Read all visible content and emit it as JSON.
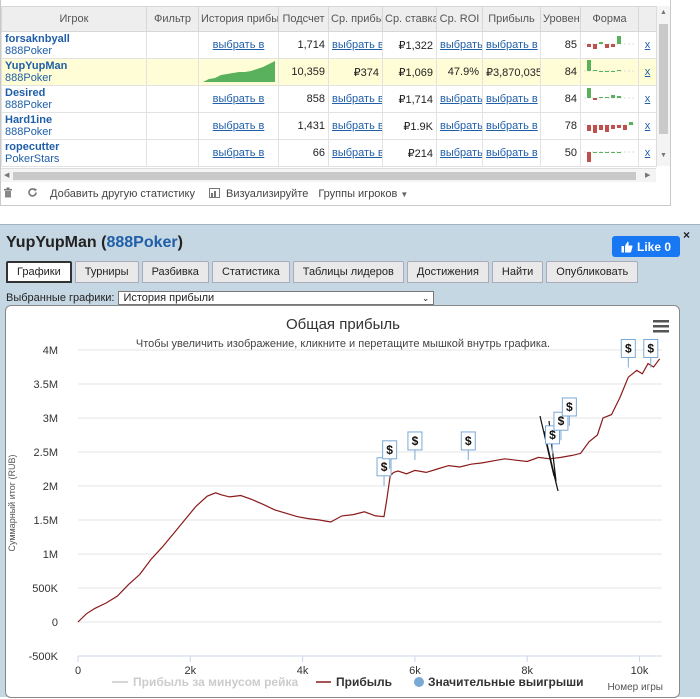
{
  "table": {
    "headers": [
      "Игрок",
      "Фильтр",
      "История прибыли",
      "Подсчет",
      "Ср. прибыль",
      "Ср. ставка",
      "Ср. ROI",
      "Прибыль",
      "Уровень",
      "Форма",
      ""
    ],
    "rows": [
      {
        "name": "forsaknbyall",
        "site": "888Poker",
        "history": "выбрать в",
        "count": "1,714",
        "avg_profit": "выбрать в",
        "avg_stake": "₽1,322",
        "roi": "выбрать",
        "profit": "выбрать в",
        "level": "85",
        "x": "x",
        "selected": false
      },
      {
        "name": "YupYupMan",
        "site": "888Poker",
        "history": "",
        "count": "10,359",
        "avg_profit": "₽374",
        "avg_stake": "₽1,069",
        "roi": "47.9%",
        "profit": "₽3,870,035",
        "level": "84",
        "x": "x",
        "selected": true
      },
      {
        "name": "Desired",
        "site": "888Poker",
        "history": "выбрать в",
        "count": "858",
        "avg_profit": "выбрать в",
        "avg_stake": "₽1,714",
        "roi": "выбрать",
        "profit": "выбрать в",
        "level": "84",
        "x": "x",
        "selected": false
      },
      {
        "name": "Hard1ine",
        "site": "888Poker",
        "history": "выбрать в",
        "count": "1,431",
        "avg_profit": "выбрать в",
        "avg_stake": "₽1.9K",
        "roi": "выбрать",
        "profit": "выбрать в",
        "level": "78",
        "x": "x",
        "selected": false
      },
      {
        "name": "ropecutter",
        "site": "PokerStars",
        "history": "выбрать в",
        "count": "66",
        "avg_profit": "выбрать в",
        "avg_stake": "₽214",
        "roi": "выбрать",
        "profit": "выбрать в",
        "level": "50",
        "x": "x",
        "selected": false
      }
    ],
    "form_colors": {
      "win": "#59b15d",
      "loss": "#c0504d"
    }
  },
  "toolbar": {
    "trash_icon": "trash-icon",
    "refresh_icon": "refresh-icon",
    "add_stats": "Добавить другую статистику",
    "visualize_icon": "chart-icon",
    "visualize": "Визуализируйте",
    "groups": "Группы игроков"
  },
  "player": {
    "name": "YupYupMan",
    "site": "888Poker",
    "like_label": "Like 0",
    "close": "×",
    "tabs": [
      "Графики",
      "Турниры",
      "Разбивка",
      "Статистика",
      "Таблицы лидеров",
      "Достижения",
      "Найти",
      "Опубликовать"
    ],
    "active_tab": 0,
    "chart_select_label": "Выбранные графики:",
    "chart_select_value": "История прибыли"
  },
  "chart_data": {
    "type": "line",
    "title": "Общая прибыль",
    "subtitle": "Чтобы увеличить изображение, кликните и перетащите мышкой внутрь графика.",
    "xlabel": "Номер игры",
    "ylabel": "Суммарный итог (RUB)",
    "xlim": [
      0,
      10400
    ],
    "ylim": [
      -500000,
      4000000
    ],
    "x_ticks": [
      "0",
      "2k",
      "4k",
      "6k",
      "8k",
      "10k"
    ],
    "x_tick_values": [
      0,
      2000,
      4000,
      6000,
      8000,
      10000
    ],
    "y_ticks": [
      "-500K",
      "0",
      "500K",
      "1M",
      "1.5M",
      "2M",
      "2.5M",
      "3M",
      "3.5M",
      "4M"
    ],
    "y_tick_values": [
      -500000,
      0,
      500000,
      1000000,
      1500000,
      2000000,
      2500000,
      3000000,
      3500000,
      4000000
    ],
    "series": [
      {
        "name": "Прибыль",
        "color": "#8b1a1a",
        "x": [
          0,
          150,
          300,
          500,
          700,
          900,
          1100,
          1300,
          1500,
          1700,
          1900,
          2100,
          2300,
          2450,
          2550,
          2700,
          2900,
          3100,
          3300,
          3500,
          3700,
          3900,
          4100,
          4300,
          4500,
          4700,
          4900,
          5100,
          5300,
          5450,
          5500,
          5560,
          5620,
          5700,
          5850,
          6000,
          6200,
          6400,
          6600,
          6800,
          7000,
          7200,
          7400,
          7600,
          7800,
          8000,
          8200,
          8400,
          8600,
          8800,
          8950,
          9100,
          9250,
          9350,
          9500,
          9650,
          9800,
          9950,
          10050,
          10150,
          10250,
          10359
        ],
        "y": [
          0,
          120000,
          200000,
          280000,
          380000,
          550000,
          700000,
          920000,
          1100000,
          1300000,
          1500000,
          1700000,
          1850000,
          1900000,
          1870000,
          1840000,
          1860000,
          1800000,
          1730000,
          1650000,
          1600000,
          1550000,
          1520000,
          1500000,
          1470000,
          1560000,
          1580000,
          1620000,
          1560000,
          1550000,
          1800000,
          2150000,
          2200000,
          2220000,
          2180000,
          2230000,
          2200000,
          2250000,
          2300000,
          2280000,
          2320000,
          2340000,
          2370000,
          2400000,
          2380000,
          2360000,
          2420000,
          2400000,
          2420000,
          2450000,
          2480000,
          2650000,
          2750000,
          3000000,
          3050000,
          3300000,
          3600000,
          3700000,
          3650000,
          3800000,
          3750000,
          3870000
        ]
      },
      {
        "name": "Прибыль за минусом рейка",
        "color": "#c8c8c8",
        "x": [],
        "y": []
      },
      {
        "name": "Значительные выигрыши",
        "color": "#7aa9d6",
        "marker": "$",
        "x": [
          5450,
          5550,
          6000,
          6950,
          8450,
          8600,
          8750,
          9800,
          10200
        ],
        "y": [
          2150000,
          2400000,
          2530000,
          2530000,
          2620000,
          2820000,
          3030000,
          3890000,
          3890000
        ]
      }
    ],
    "legend": [
      "Прибыль за минусом рейка",
      "Прибыль",
      "Значительные выигрыши"
    ],
    "legend_position": "bottom",
    "grid": true,
    "menu_icon": "menu-icon"
  }
}
